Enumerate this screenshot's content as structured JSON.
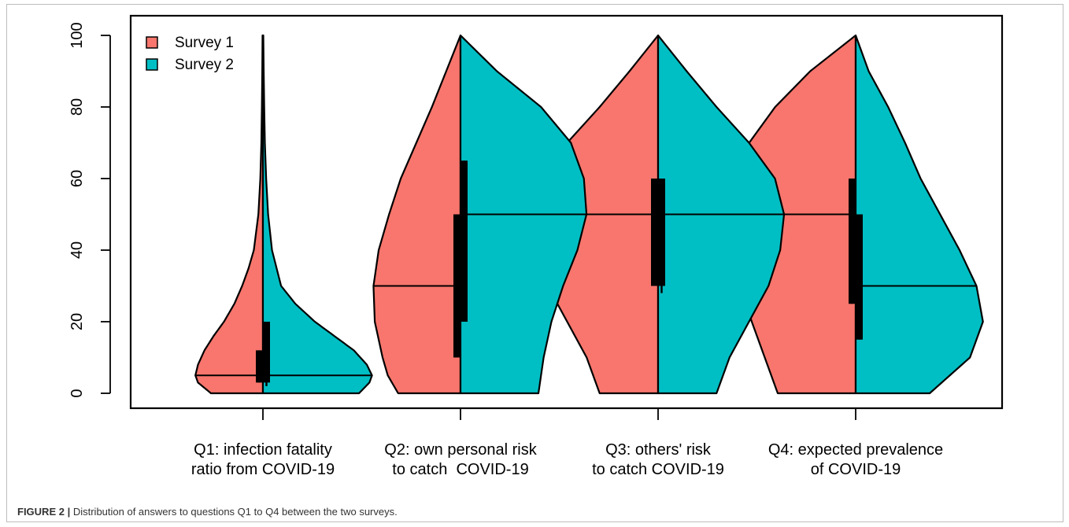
{
  "figure": {
    "label": "FIGURE 2",
    "caption_separator": " | ",
    "caption": "Distribution of answers to questions Q1 to Q4 between the two surveys."
  },
  "chart_data": {
    "type": "split-violin",
    "ylim": [
      0,
      100
    ],
    "yticks": [
      0,
      20,
      40,
      60,
      80,
      100
    ],
    "categories": [
      [
        "Q1: infection fatality",
        "ratio from COVID-19"
      ],
      [
        "Q2: own personal risk",
        "to catch  COVID-19"
      ],
      [
        "Q3: others' risk",
        "to catch COVID-19"
      ],
      [
        "Q4: expected prevalence",
        "of COVID-19"
      ]
    ],
    "legend": {
      "position": "top-left",
      "entries": [
        "Survey 1",
        "Survey 2"
      ]
    },
    "series": [
      {
        "name": "Survey 1",
        "color": "#f8766d",
        "side": "left",
        "groups": [
          {
            "median": 5,
            "q1": 3,
            "q3": 12,
            "whisker": [
              3,
              12
            ],
            "density": [
              [
                0,
                0.4
              ],
              [
                3,
                0.5
              ],
              [
                5,
                0.52
              ],
              [
                8,
                0.5
              ],
              [
                12,
                0.45
              ],
              [
                16,
                0.38
              ],
              [
                20,
                0.3
              ],
              [
                25,
                0.22
              ],
              [
                30,
                0.16
              ],
              [
                35,
                0.11
              ],
              [
                40,
                0.07
              ],
              [
                50,
                0.035
              ],
              [
                60,
                0.02
              ],
              [
                70,
                0.012
              ],
              [
                80,
                0.008
              ],
              [
                90,
                0.005
              ],
              [
                100,
                0.003
              ]
            ]
          },
          {
            "median": 30,
            "q1": 10,
            "q3": 50,
            "whisker": [
              10,
              50
            ],
            "density": [
              [
                0,
                0.48
              ],
              [
                5,
                0.56
              ],
              [
                10,
                0.6
              ],
              [
                15,
                0.63
              ],
              [
                20,
                0.66
              ],
              [
                30,
                0.67
              ],
              [
                40,
                0.63
              ],
              [
                50,
                0.55
              ],
              [
                60,
                0.46
              ],
              [
                70,
                0.34
              ],
              [
                80,
                0.22
              ],
              [
                90,
                0.11
              ],
              [
                100,
                0.0
              ]
            ]
          },
          {
            "median": 50,
            "q1": 30,
            "q3": 60,
            "whisker": [
              30,
              60
            ],
            "density": [
              [
                0,
                0.45
              ],
              [
                10,
                0.55
              ],
              [
                20,
                0.7
              ],
              [
                30,
                0.85
              ],
              [
                40,
                0.94
              ],
              [
                50,
                0.97
              ],
              [
                60,
                0.9
              ],
              [
                70,
                0.7
              ],
              [
                80,
                0.45
              ],
              [
                90,
                0.22
              ],
              [
                100,
                0.0
              ]
            ]
          },
          {
            "median": 50,
            "q1": 25,
            "q3": 60,
            "whisker": [
              25,
              60
            ],
            "density": [
              [
                0,
                0.6
              ],
              [
                10,
                0.7
              ],
              [
                20,
                0.8
              ],
              [
                30,
                0.89
              ],
              [
                40,
                0.93
              ],
              [
                50,
                0.95
              ],
              [
                60,
                0.92
              ],
              [
                70,
                0.82
              ],
              [
                80,
                0.62
              ],
              [
                90,
                0.35
              ],
              [
                100,
                0.0
              ]
            ]
          }
        ]
      },
      {
        "name": "Survey 2",
        "color": "#00bfc4",
        "side": "right",
        "groups": [
          {
            "median": 5,
            "q1": 3,
            "q3": 20,
            "whisker": [
              2,
              20
            ],
            "density": [
              [
                0,
                0.74
              ],
              [
                3,
                0.82
              ],
              [
                5,
                0.84
              ],
              [
                8,
                0.8
              ],
              [
                12,
                0.7
              ],
              [
                16,
                0.55
              ],
              [
                20,
                0.4
              ],
              [
                25,
                0.25
              ],
              [
                30,
                0.14
              ],
              [
                40,
                0.07
              ],
              [
                50,
                0.04
              ],
              [
                60,
                0.025
              ],
              [
                70,
                0.015
              ],
              [
                80,
                0.01
              ],
              [
                90,
                0.006
              ],
              [
                100,
                0.003
              ]
            ]
          },
          {
            "median": 50,
            "q1": 20,
            "q3": 65,
            "whisker": [
              20,
              65
            ],
            "density": [
              [
                0,
                0.6
              ],
              [
                10,
                0.64
              ],
              [
                20,
                0.7
              ],
              [
                30,
                0.79
              ],
              [
                40,
                0.9
              ],
              [
                50,
                0.97
              ],
              [
                60,
                0.95
              ],
              [
                70,
                0.85
              ],
              [
                80,
                0.62
              ],
              [
                90,
                0.28
              ],
              [
                100,
                0.0
              ]
            ]
          },
          {
            "median": 50,
            "q1": 30,
            "q3": 60,
            "whisker": [
              28,
              60
            ],
            "density": [
              [
                0,
                0.45
              ],
              [
                10,
                0.55
              ],
              [
                20,
                0.7
              ],
              [
                30,
                0.85
              ],
              [
                40,
                0.94
              ],
              [
                50,
                0.97
              ],
              [
                60,
                0.9
              ],
              [
                70,
                0.7
              ],
              [
                80,
                0.45
              ],
              [
                90,
                0.22
              ],
              [
                100,
                0.0
              ]
            ]
          },
          {
            "median": 30,
            "q1": 15,
            "q3": 50,
            "whisker": [
              15,
              50
            ],
            "density": [
              [
                0,
                0.57
              ],
              [
                10,
                0.88
              ],
              [
                20,
                0.98
              ],
              [
                30,
                0.93
              ],
              [
                40,
                0.8
              ],
              [
                50,
                0.65
              ],
              [
                60,
                0.5
              ],
              [
                70,
                0.38
              ],
              [
                80,
                0.25
              ],
              [
                90,
                0.1
              ],
              [
                100,
                0.0
              ]
            ]
          }
        ]
      }
    ]
  }
}
